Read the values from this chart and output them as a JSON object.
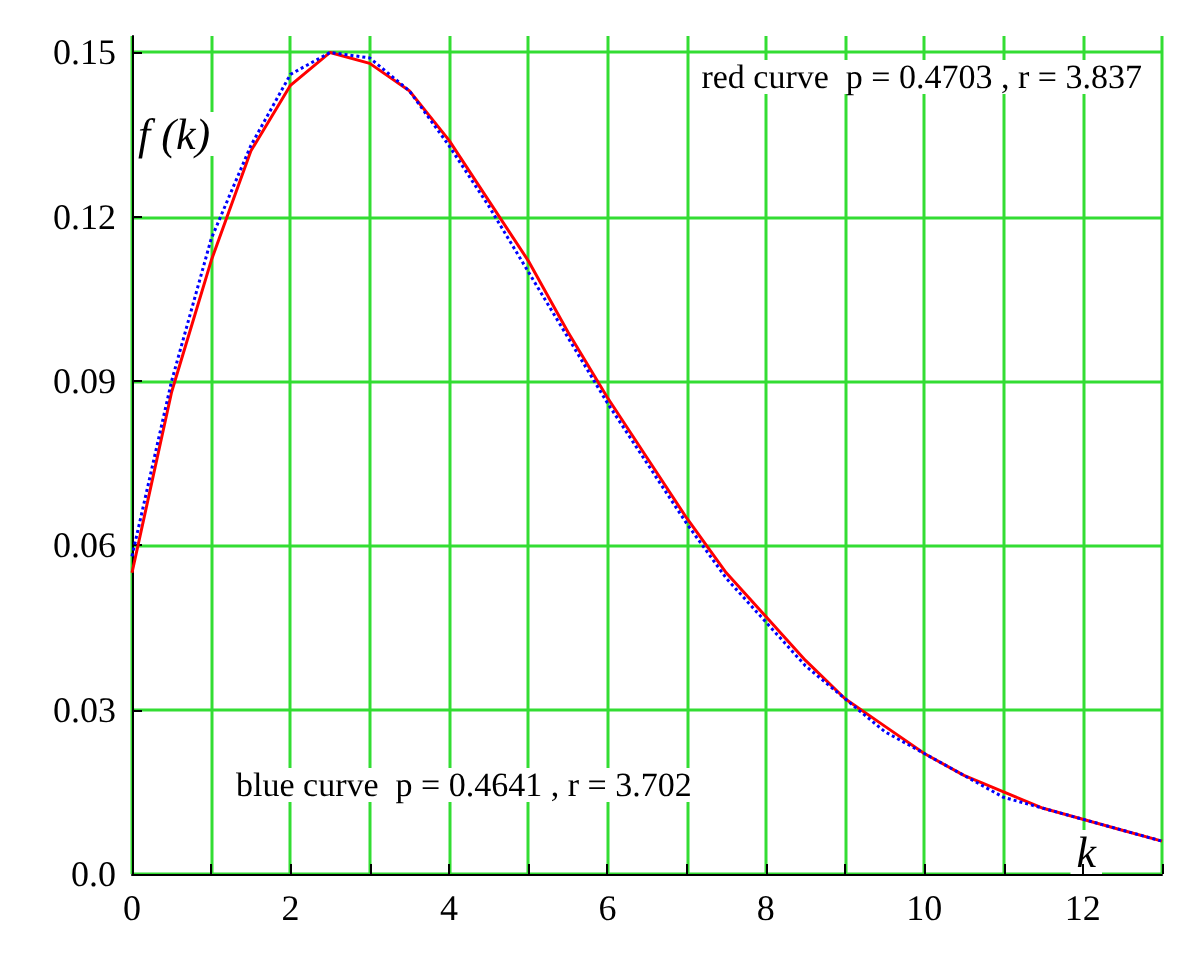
{
  "chart_data": {
    "type": "line",
    "xlabel": "k",
    "ylabel": "f (k)",
    "xlim": [
      0,
      13
    ],
    "ylim": [
      0,
      0.153
    ],
    "xticks": [
      0,
      {
        "value": 1,
        "label": null
      },
      2,
      {
        "value": 3,
        "label": null
      },
      4,
      {
        "value": 5,
        "label": null
      },
      6,
      {
        "value": 7,
        "label": null
      },
      8,
      {
        "value": 9,
        "label": null
      },
      10,
      {
        "value": 11,
        "label": null
      },
      12,
      {
        "value": 13,
        "label": null
      }
    ],
    "yticks": [
      {
        "value": 0,
        "label": "0.0"
      },
      0.03,
      0.06,
      0.09,
      0.12,
      0.15
    ],
    "x": [
      0,
      0.5,
      1,
      1.5,
      2,
      2.5,
      3,
      3.5,
      4,
      4.5,
      5,
      5.5,
      6,
      6.5,
      7,
      7.5,
      8,
      8.5,
      9,
      9.5,
      10,
      10.5,
      11,
      11.5,
      12,
      12.5,
      13
    ],
    "series": [
      {
        "color": "#ff0000",
        "line_style": "solid",
        "values": [
          0.055,
          0.088,
          0.112,
          0.132,
          0.144,
          0.15,
          0.148,
          0.143,
          0.134,
          0.123,
          0.112,
          0.099,
          0.087,
          0.076,
          0.065,
          0.055,
          0.047,
          0.039,
          0.032,
          0.027,
          0.022,
          0.018,
          0.015,
          0.012,
          0.01,
          0.008,
          0.006
        ]
      },
      {
        "color": "#0000ff",
        "line_style": "dotted",
        "values": [
          0.058,
          0.09,
          0.116,
          0.133,
          0.146,
          0.15,
          0.149,
          0.143,
          0.133,
          0.122,
          0.11,
          0.098,
          0.086,
          0.075,
          0.064,
          0.054,
          0.046,
          0.038,
          0.032,
          0.026,
          0.022,
          0.018,
          0.014,
          0.012,
          0.01,
          0.008,
          0.006
        ]
      }
    ],
    "annotations": [
      "red curve  p = 0.4703 , r = 3.837",
      "blue curve  p = 0.4641 , r = 3.702"
    ],
    "grid": true,
    "marker": "none"
  }
}
